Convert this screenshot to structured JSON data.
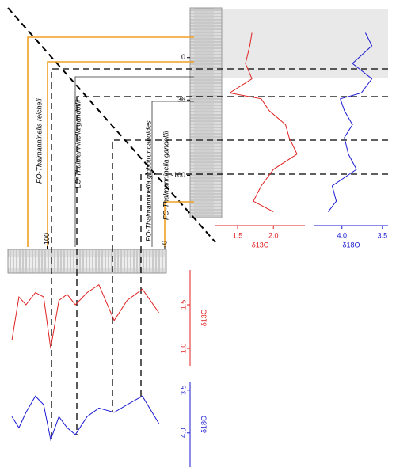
{
  "chart_data": [
    {
      "type": "line",
      "orientation": "vertical",
      "depth": [
        21,
        10,
        -5,
        -18,
        -30,
        -35,
        -45,
        -57,
        -68,
        -82,
        -95,
        -109,
        -122,
        -131
      ],
      "depth_lim": [
        22,
        -136
      ],
      "depth_ticks": [
        0,
        {
          "value": -36,
          "label": "36"
        },
        -100
      ],
      "series": [
        {
          "name": "δ13C",
          "color": "#e02020",
          "lim": [
            1.19,
            2.44
          ],
          "ticks": [
            1.5,
            {
              "value": 2,
              "label": "2.0"
            }
          ],
          "values": [
            1.7,
            1.67,
            1.61,
            1.7,
            1.39,
            1.83,
            1.94,
            2.17,
            2.22,
            2.33,
            2.0,
            1.83,
            1.72,
            2.0
          ]
        },
        {
          "name": "δ18O",
          "color": "#1a1ad0",
          "lim": [
            4.34,
            3.43
          ],
          "ticks": [
            {
              "value": 4,
              "label": "4.0"
            },
            3.5
          ],
          "values": [
            3.71,
            3.63,
            3.87,
            3.63,
            3.76,
            4.02,
            3.97,
            3.87,
            3.97,
            3.92,
            3.82,
            4.12,
            4.07,
            4.17
          ]
        }
      ]
    },
    {
      "type": "line",
      "orientation": "horizontal",
      "depth": [
        130,
        124,
        118,
        110,
        103,
        97,
        90,
        83,
        76,
        66,
        56,
        43,
        32,
        19,
        5
      ],
      "depth_lim": [
        130,
        2
      ],
      "depth_ticks": [
        100,
        0
      ],
      "series": [
        {
          "name": "δ13C",
          "color": "#e02020",
          "lim": [
            1.9,
            0.8
          ],
          "ticks": [
            1.5,
            {
              "value": 1,
              "label": "1.0"
            }
          ],
          "values": [
            1.09,
            1.59,
            1.5,
            1.64,
            1.59,
            1.0,
            1.55,
            1.62,
            1.5,
            1.64,
            1.73,
            1.32,
            1.55,
            1.68,
            1.41
          ]
        },
        {
          "name": "δ18O",
          "color": "#1a1ad0",
          "lim": [
            3.4,
            4.4
          ],
          "ticks": [
            3.5,
            {
              "value": 4,
              "label": "4.0"
            }
          ],
          "values": [
            3.81,
            3.94,
            3.76,
            3.57,
            3.67,
            4.08,
            3.81,
            3.94,
            4.02,
            3.81,
            3.71,
            3.76,
            3.67,
            3.57,
            3.89
          ]
        }
      ]
    }
  ],
  "events": [
    "FO-Thalmanninella reicheli",
    "LO-Thalmanninella gandolfii",
    "FO-Thalmanninella globotruncanoides",
    "FO-Thalmanninella gandolfii"
  ]
}
